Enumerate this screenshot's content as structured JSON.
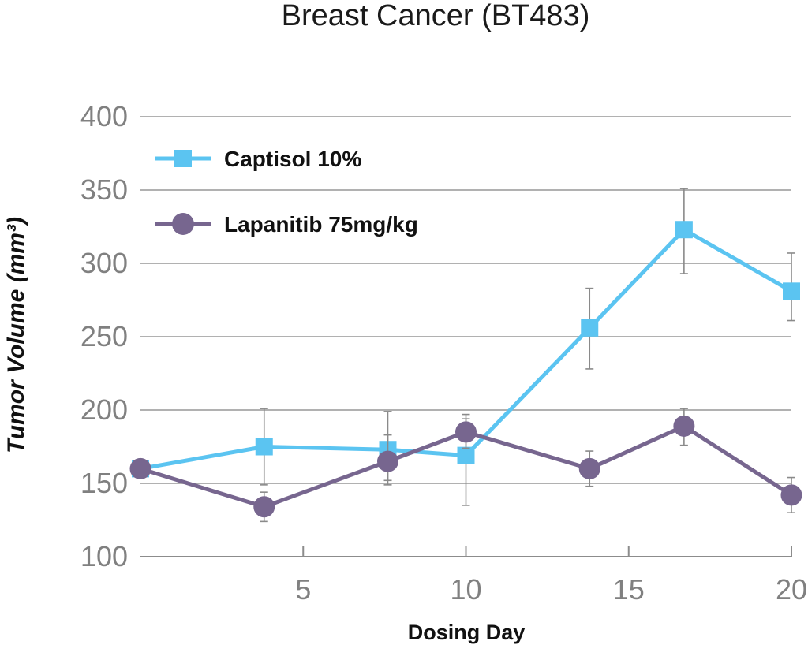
{
  "chart_data": {
    "type": "line",
    "title": "Breast Cancer (BT483)",
    "xlabel": "Dosing Day",
    "ylabel": "Tumor Volume (mm³)",
    "xlim": [
      0,
      20
    ],
    "ylim": [
      100,
      400
    ],
    "xticks": [
      "5",
      "10",
      "15",
      "20"
    ],
    "yticks": [
      "100",
      "150",
      "200",
      "250",
      "300",
      "350",
      "400"
    ],
    "grid": "horizontal",
    "legend_position": "top-left",
    "series": [
      {
        "name": "Captisol 10%",
        "color": "#5bc4f1",
        "marker": "square",
        "x": [
          0,
          3.8,
          7.6,
          10,
          13.8,
          16.7,
          20
        ],
        "y": [
          160,
          175,
          173,
          169,
          256,
          323,
          281
        ],
        "err_low": [
          160,
          149,
          152,
          135,
          228,
          293,
          261
        ],
        "err_high": [
          160,
          201,
          199,
          194,
          283,
          351,
          307
        ]
      },
      {
        "name": "Lapanitib 75mg/kg",
        "color": "#77668f",
        "marker": "circle",
        "x": [
          0,
          3.8,
          7.6,
          10,
          13.8,
          16.7,
          20
        ],
        "y": [
          160,
          134,
          165,
          185,
          160,
          189,
          142
        ],
        "err_low": [
          160,
          124,
          149,
          174,
          148,
          176,
          130
        ],
        "err_high": [
          160,
          144,
          183,
          197,
          172,
          201,
          154
        ]
      }
    ]
  }
}
